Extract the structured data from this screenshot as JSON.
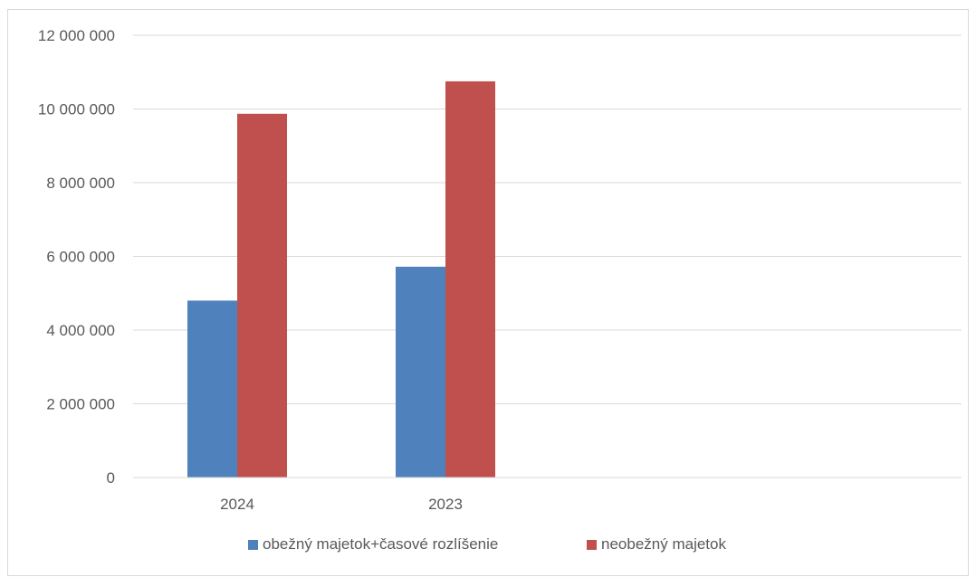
{
  "chart_data": {
    "type": "bar",
    "title": "",
    "xlabel": "",
    "ylabel": "",
    "categories": [
      "2024",
      "2023"
    ],
    "series": [
      {
        "name": "obežný majetok+časové rozlíšenie",
        "color": "#4f81bd",
        "values": [
          4800000,
          5720000
        ]
      },
      {
        "name": "neobežný majetok",
        "color": "#c0504d",
        "values": [
          9870000,
          10750000
        ]
      }
    ],
    "ylim": [
      0,
      12000000
    ],
    "yticks": [
      0,
      2000000,
      4000000,
      6000000,
      8000000,
      10000000,
      12000000
    ],
    "ytick_labels": [
      "0",
      "2 000 000",
      "4 000 000",
      "6 000 000",
      "8 000 000",
      "10 000 000",
      "12 000 000"
    ],
    "grid": true,
    "legend_position": "bottom"
  }
}
